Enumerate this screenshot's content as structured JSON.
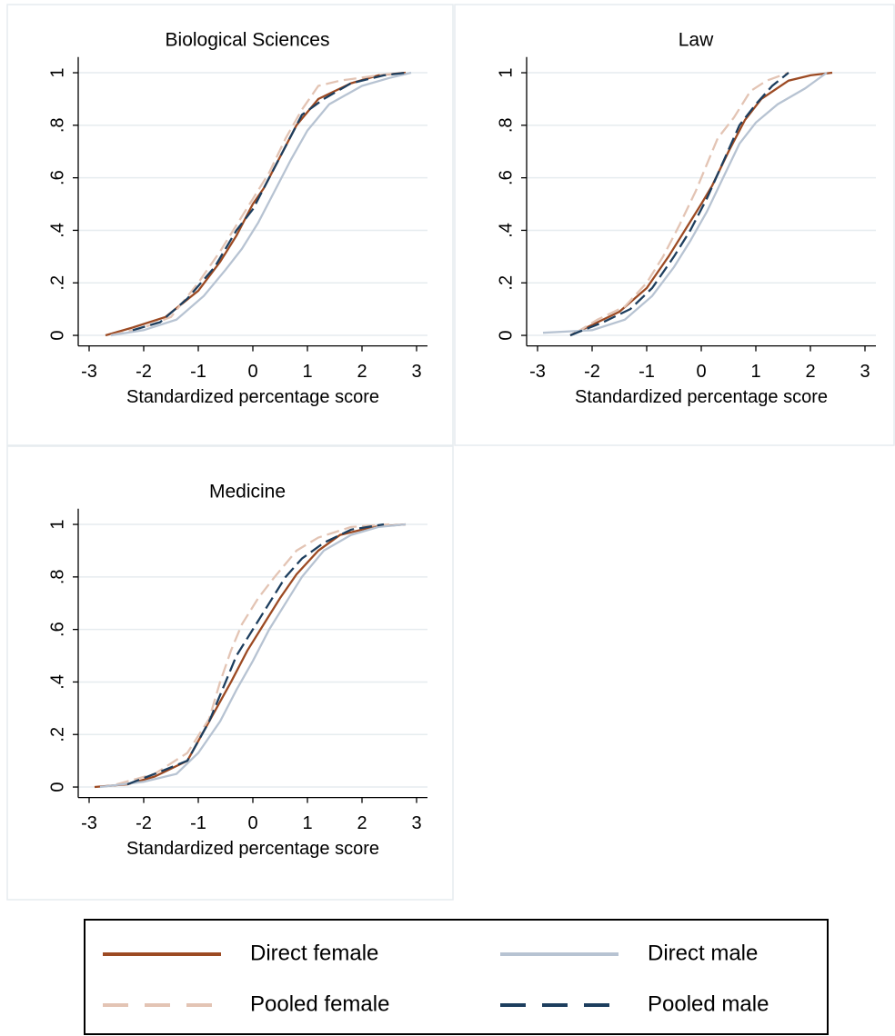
{
  "chart_data": [
    {
      "type": "line",
      "title": "Biological Sciences",
      "xlabel": "Standardized percentage score",
      "xlim": [
        -3.2,
        3.2
      ],
      "xticks": [
        -3,
        -2,
        -1,
        0,
        1,
        2,
        3
      ],
      "ylim": [
        -0.04,
        1.06
      ],
      "yticks": [
        0,
        {
          "value": 0.2,
          "label": ".2"
        },
        {
          "value": 0.4,
          "label": ".4"
        },
        {
          "value": 0.6,
          "label": ".6"
        },
        {
          "value": 0.8,
          "label": ".8"
        },
        1
      ],
      "grid": true,
      "series": [
        {
          "name": "Direct female",
          "color": "#9c4a23",
          "dashed": false,
          "x": [
            -2.7,
            -2.2,
            -1.6,
            -1.0,
            -0.6,
            -0.3,
            0,
            0.2,
            0.5,
            0.8,
            1.2,
            1.8,
            2.3,
            2.8
          ],
          "values": [
            0,
            0.03,
            0.07,
            0.17,
            0.28,
            0.38,
            0.5,
            0.56,
            0.68,
            0.8,
            0.9,
            0.96,
            0.99,
            1
          ]
        },
        {
          "name": "Pooled female",
          "color": "#e3c4b4",
          "dashed": true,
          "x": [
            -2.6,
            -2.0,
            -1.5,
            -1.0,
            -0.6,
            -0.3,
            0,
            0.3,
            0.6,
            0.9,
            1.2,
            1.6,
            2.3,
            2.7
          ],
          "values": [
            0,
            0.03,
            0.07,
            0.2,
            0.32,
            0.42,
            0.52,
            0.62,
            0.75,
            0.86,
            0.95,
            0.97,
            0.99,
            1
          ]
        },
        {
          "name": "Direct male",
          "color": "#b7c3d2",
          "dashed": false,
          "x": [
            -2.6,
            -2.0,
            -1.4,
            -0.9,
            -0.5,
            -0.2,
            0.1,
            0.4,
            0.7,
            1.0,
            1.4,
            2.0,
            2.5,
            2.9
          ],
          "values": [
            0,
            0.02,
            0.06,
            0.15,
            0.25,
            0.33,
            0.43,
            0.55,
            0.67,
            0.78,
            0.88,
            0.95,
            0.98,
            1
          ]
        },
        {
          "name": "Pooled male",
          "color": "#1d3e5e",
          "dashed": true,
          "x": [
            -2.2,
            -1.7,
            -1.2,
            -0.7,
            -0.3,
            0,
            0.3,
            0.6,
            0.9,
            1.3,
            1.8,
            2.4,
            2.8
          ],
          "values": [
            0.02,
            0.05,
            0.14,
            0.26,
            0.4,
            0.48,
            0.6,
            0.72,
            0.84,
            0.9,
            0.96,
            0.99,
            1
          ]
        }
      ]
    },
    {
      "type": "line",
      "title": "Law",
      "xlabel": "Standardized percentage score",
      "xlim": [
        -3.2,
        3.2
      ],
      "xticks": [
        -3,
        -2,
        -1,
        0,
        1,
        2,
        3
      ],
      "ylim": [
        -0.04,
        1.06
      ],
      "yticks": [
        0,
        {
          "value": 0.2,
          "label": ".2"
        },
        {
          "value": 0.4,
          "label": ".4"
        },
        {
          "value": 0.6,
          "label": ".6"
        },
        {
          "value": 0.8,
          "label": ".8"
        },
        1
      ],
      "grid": true,
      "series": [
        {
          "color": "#9c4a23",
          "dashed": false,
          "x": [
            -2.4,
            -2.0,
            -1.5,
            -1.0,
            -0.6,
            -0.3,
            0,
            0.2,
            0.5,
            0.8,
            1.1,
            1.6,
            2.0,
            2.4
          ],
          "values": [
            0,
            0.04,
            0.09,
            0.18,
            0.3,
            0.4,
            0.5,
            0.57,
            0.7,
            0.82,
            0.9,
            0.97,
            0.99,
            1
          ]
        },
        {
          "color": "#e3c4b4",
          "dashed": true,
          "x": [
            -2.3,
            -1.9,
            -1.4,
            -1.0,
            -0.7,
            -0.4,
            -0.1,
            0.1,
            0.3,
            0.6,
            0.9,
            1.2,
            1.6
          ],
          "values": [
            0.01,
            0.06,
            0.11,
            0.2,
            0.3,
            0.42,
            0.55,
            0.65,
            0.75,
            0.83,
            0.93,
            0.97,
            1
          ]
        },
        {
          "color": "#b7c3d2",
          "dashed": false,
          "x": [
            -2.9,
            -2.0,
            -1.4,
            -0.9,
            -0.5,
            -0.2,
            0.1,
            0.4,
            0.7,
            1.0,
            1.4,
            1.9,
            2.3
          ],
          "values": [
            0.01,
            0.02,
            0.06,
            0.15,
            0.26,
            0.36,
            0.47,
            0.6,
            0.73,
            0.81,
            0.88,
            0.94,
            1
          ]
        },
        {
          "color": "#1d3e5e",
          "dashed": true,
          "x": [
            -2.4,
            -1.8,
            -1.3,
            -0.9,
            -0.5,
            -0.2,
            0.1,
            0.4,
            0.7,
            1.0,
            1.3,
            1.6
          ],
          "values": [
            0,
            0.05,
            0.1,
            0.18,
            0.3,
            0.4,
            0.52,
            0.66,
            0.8,
            0.88,
            0.95,
            1
          ]
        }
      ]
    },
    {
      "type": "line",
      "title": "Medicine",
      "xlabel": "Standardized percentage score",
      "xlim": [
        -3.2,
        3.2
      ],
      "xticks": [
        -3,
        -2,
        -1,
        0,
        1,
        2,
        3
      ],
      "ylim": [
        -0.04,
        1.06
      ],
      "yticks": [
        0,
        {
          "value": 0.2,
          "label": ".2"
        },
        {
          "value": 0.4,
          "label": ".4"
        },
        {
          "value": 0.6,
          "label": ".6"
        },
        {
          "value": 0.8,
          "label": ".8"
        },
        1
      ],
      "grid": true,
      "series": [
        {
          "color": "#9c4a23",
          "dashed": false,
          "x": [
            -2.9,
            -2.3,
            -1.8,
            -1.2,
            -0.8,
            -0.4,
            -0.1,
            0.2,
            0.5,
            0.8,
            1.2,
            1.6,
            2.2,
            2.8
          ],
          "values": [
            0,
            0.01,
            0.04,
            0.1,
            0.25,
            0.4,
            0.52,
            0.62,
            0.72,
            0.81,
            0.9,
            0.96,
            0.99,
            1
          ]
        },
        {
          "color": "#e3c4b4",
          "dashed": true,
          "x": [
            -2.5,
            -1.8,
            -1.2,
            -0.8,
            -0.6,
            -0.4,
            -0.2,
            0.1,
            0.4,
            0.8,
            1.2,
            1.8,
            2.5
          ],
          "values": [
            0.01,
            0.05,
            0.13,
            0.26,
            0.4,
            0.52,
            0.62,
            0.72,
            0.8,
            0.9,
            0.95,
            0.99,
            1
          ]
        },
        {
          "color": "#b7c3d2",
          "dashed": false,
          "x": [
            -2.8,
            -2.0,
            -1.4,
            -1.0,
            -0.6,
            -0.3,
            0,
            0.3,
            0.6,
            0.9,
            1.3,
            1.8,
            2.3,
            2.8
          ],
          "values": [
            0,
            0.02,
            0.05,
            0.13,
            0.25,
            0.37,
            0.48,
            0.6,
            0.7,
            0.8,
            0.9,
            0.96,
            0.99,
            1
          ]
        },
        {
          "color": "#1d3e5e",
          "dashed": true,
          "x": [
            -2.3,
            -1.8,
            -1.2,
            -0.8,
            -0.5,
            -0.3,
            0,
            0.3,
            0.6,
            0.9,
            1.3,
            1.8,
            2.4
          ],
          "values": [
            0.01,
            0.05,
            0.1,
            0.25,
            0.4,
            0.5,
            0.6,
            0.7,
            0.8,
            0.87,
            0.93,
            0.98,
            1
          ]
        }
      ]
    }
  ]
}
